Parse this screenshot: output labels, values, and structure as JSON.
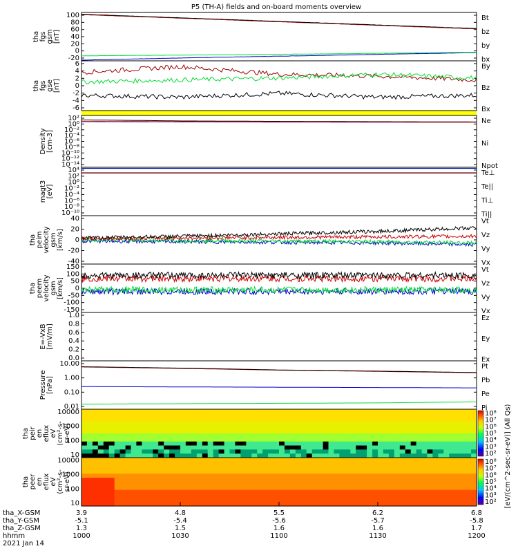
{
  "title": "P5 (TH-A) fields and on-board moments overview",
  "colors": {
    "black": "#000000",
    "red": "#cc0000",
    "green": "#00dd33",
    "blue": "#0000cc",
    "yellow": "#ffff00",
    "darkred": "#990000"
  },
  "panels": [
    {
      "ylabel": [
        "tha",
        "fgs",
        "gsm",
        "[nT]"
      ],
      "ticks": [
        "100",
        "80",
        "60",
        "40",
        "20",
        "0",
        "-20"
      ],
      "legend": [
        {
          "t": "Bt",
          "c": "black"
        },
        {
          "t": "bz",
          "c": "red"
        },
        {
          "t": "by",
          "c": "green"
        },
        {
          "t": "bx",
          "c": "blue"
        }
      ]
    },
    {
      "ylabel": [
        "tha",
        "fgs",
        "gse",
        "[nT]"
      ],
      "ticks": [
        "6",
        "4",
        "2",
        "0",
        "-2",
        "-4",
        "-6"
      ],
      "legend": [
        {
          "t": "By",
          "c": "green"
        },
        {
          "t": "Bz",
          "c": "darkred"
        },
        {
          "t": "Bx",
          "c": "black"
        }
      ]
    },
    {
      "ylabel": [
        "Density",
        "[cm-3]"
      ],
      "ticks": [
        "10²",
        "10⁰",
        "10⁻²",
        "10⁻⁴",
        "10⁻⁶",
        "10⁻⁸",
        "10⁻¹⁰",
        "10⁻¹²",
        "10⁻¹⁴"
      ],
      "legend": [
        {
          "t": "Ne",
          "c": "red"
        },
        {
          "t": "Ni",
          "c": "black"
        },
        {
          "t": "Npot",
          "c": "blue"
        }
      ]
    },
    {
      "ylabel": [
        "magt3",
        "[eV]"
      ],
      "ticks": [
        "10⁴",
        "10²",
        "10⁰",
        "10⁻²",
        "10⁻⁴",
        "10⁻⁶",
        "10⁻⁸",
        "10⁻¹⁰"
      ],
      "legend": [
        {
          "t": "Te⊥",
          "c": "red"
        },
        {
          "t": "Te||",
          "c": "black"
        },
        {
          "t": "Ti⊥",
          "c": "blue"
        },
        {
          "t": "Ti||",
          "c": "green"
        }
      ]
    },
    {
      "ylabel": [
        "tha",
        "peim",
        "velocity",
        "gsm",
        "[km/s]"
      ],
      "ticks": [
        "40",
        "20",
        "0",
        "-20",
        "-40"
      ],
      "legend": [
        {
          "t": "Vt",
          "c": "black"
        },
        {
          "t": "Vz",
          "c": "red"
        },
        {
          "t": "Vy",
          "c": "green"
        },
        {
          "t": "Vx",
          "c": "blue"
        }
      ]
    },
    {
      "ylabel": [
        "tha",
        "peem",
        "velocity",
        "gsm",
        "[km/s]"
      ],
      "ticks": [
        "150",
        "100",
        "50",
        "0",
        "-50",
        "-100",
        "-150"
      ],
      "legend": [
        {
          "t": "Vt",
          "c": "black"
        },
        {
          "t": "Vz",
          "c": "red"
        },
        {
          "t": "Vy",
          "c": "green"
        },
        {
          "t": "Vx",
          "c": "blue"
        }
      ]
    },
    {
      "ylabel": [
        "E=-VxB",
        "[mV/m]"
      ],
      "ticks": [
        "1.0",
        "0.8",
        "0.6",
        "0.4",
        "0.2",
        "0.0"
      ],
      "legend": [
        {
          "t": "Ez",
          "c": "red"
        },
        {
          "t": "Ey",
          "c": "green"
        },
        {
          "t": "Ex",
          "c": "blue"
        }
      ]
    },
    {
      "ylabel": [
        "Pressure",
        "[nPa]"
      ],
      "ticks": [
        "10.00",
        "1.00",
        "0.10",
        "0.01"
      ],
      "legend": [
        {
          "t": "Pt",
          "c": "black"
        },
        {
          "t": "Pb",
          "c": "red"
        },
        {
          "t": "Pe",
          "c": "green"
        },
        {
          "t": "Pi",
          "c": "blue"
        }
      ]
    },
    {
      "ylabel": [
        "tha",
        "peir",
        "en",
        "eflux",
        "eV",
        "(cm²-s-",
        "sr-eV)"
      ],
      "ticks": [
        "10000",
        "1000",
        "100",
        "10"
      ]
    },
    {
      "ylabel": [
        "tha",
        "peer",
        "en",
        "eflux",
        "eV",
        "(cm²-s-",
        "sr-eV)"
      ],
      "ticks": [
        "10000",
        "1000",
        "100",
        "10"
      ]
    }
  ],
  "colorbar": {
    "label": "[eV/(cm^2-sec-sr-eV)] (All Qs)",
    "top_ticks": [
      "10⁸",
      "10⁷",
      "10⁶",
      "10⁵",
      "10⁴",
      "10³",
      "10²"
    ],
    "bottom_ticks": [
      "10⁸",
      "10⁷",
      "10⁶",
      "10⁵",
      "10⁴",
      "10³",
      "10²"
    ]
  },
  "xaxis": {
    "row_labels": [
      "tha_X-GSM",
      "tha_Y-GSM",
      "tha_Z-GSM",
      "hhmm",
      "2021 Jan 14"
    ],
    "columns": [
      {
        "x": "3.9",
        "y": "-5.1",
        "z": "1.3",
        "t": "1000"
      },
      {
        "x": "4.8",
        "y": "-5.4",
        "z": "1.5",
        "t": "1030"
      },
      {
        "x": "5.5",
        "y": "-5.6",
        "z": "1.6",
        "t": "1100"
      },
      {
        "x": "6.2",
        "y": "-5.7",
        "z": "1.6",
        "t": "1130"
      },
      {
        "x": "6.8",
        "y": "-5.8",
        "z": "1.7",
        "t": "1200"
      }
    ]
  },
  "chart_data": [
    {
      "type": "line",
      "title": "P5 (TH-A) fields and on-board moments overview",
      "ylabel": "tha fgs gsm [nT]",
      "ylim": [
        -30,
        105
      ],
      "x": [
        "1000",
        "1030",
        "1100",
        "1130",
        "1200"
      ],
      "series": [
        {
          "name": "Bt",
          "values": [
            100,
            90,
            80,
            70,
            60
          ]
        },
        {
          "name": "bz",
          "values": [
            99,
            89,
            79,
            69,
            59
          ]
        },
        {
          "name": "by",
          "values": [
            -16,
            -14,
            -12,
            -9,
            -6
          ]
        },
        {
          "name": "bx",
          "values": [
            -28,
            -22,
            -17,
            -12,
            -7
          ]
        }
      ]
    },
    {
      "type": "line",
      "ylabel": "tha fgs gse [nT]",
      "ylim": [
        -7,
        6
      ],
      "x": [
        "1000",
        "1030",
        "1100",
        "1130",
        "1200"
      ],
      "series": [
        {
          "name": "By",
          "values": [
            0.5,
            1,
            1.5,
            2.5,
            1.5
          ]
        },
        {
          "name": "Bz",
          "values": [
            3,
            4.5,
            2.5,
            2,
            1
          ]
        },
        {
          "name": "Bx",
          "values": [
            -3,
            -3.5,
            -2.5,
            -3.5,
            -3
          ]
        }
      ]
    },
    {
      "type": "line",
      "ylabel": "Density [cm-3]",
      "ylim": [
        "1e-14",
        "1e2"
      ],
      "x": [
        "1000",
        "1030",
        "1100",
        "1130",
        "1200"
      ],
      "series": [
        {
          "name": "Ne",
          "values": [
            1.5,
            1.2,
            1.0,
            0.9,
            0.8
          ]
        },
        {
          "name": "Ni",
          "values": [
            4,
            2,
            1.5,
            1.2,
            1.0
          ]
        },
        {
          "name": "Npot",
          "values": [
            1.2,
            1.0,
            0.9,
            0.85,
            0.8
          ]
        }
      ]
    },
    {
      "type": "line",
      "ylabel": "magt3 [eV]",
      "ylim": [
        "1e-10",
        "1e4"
      ],
      "x": [
        "1000",
        "1030",
        "1100",
        "1130",
        "1200"
      ],
      "series": [
        {
          "name": "Te⊥",
          "values": [
            200,
            200,
            200,
            200,
            200
          ]
        },
        {
          "name": "Te||",
          "values": [
            250,
            250,
            250,
            250,
            250
          ]
        },
        {
          "name": "Ti⊥",
          "values": [
            5000,
            5000,
            5000,
            5000,
            5000
          ]
        },
        {
          "name": "Ti||",
          "values": [
            4500,
            4500,
            4500,
            4500,
            4500
          ]
        }
      ]
    },
    {
      "type": "line",
      "ylabel": "tha peim velocity gsm [km/s]",
      "ylim": [
        -40,
        40
      ],
      "x": [
        "1000",
        "1030",
        "1100",
        "1130",
        "1200"
      ],
      "series": [
        {
          "name": "Vt",
          "values": [
            3,
            6,
            10,
            14,
            20
          ]
        },
        {
          "name": "Vz",
          "values": [
            2,
            3,
            4,
            5,
            6
          ]
        },
        {
          "name": "Vy",
          "values": [
            0,
            -1,
            -2,
            -3,
            -5
          ]
        },
        {
          "name": "Vx",
          "values": [
            -2,
            -3,
            -4,
            -5,
            -8
          ]
        }
      ]
    },
    {
      "type": "line",
      "ylabel": "tha peem velocity gsm [km/s]",
      "ylim": [
        -150,
        150
      ],
      "x": [
        "1000",
        "1030",
        "1100",
        "1130",
        "1200"
      ],
      "series": [
        {
          "name": "Vt",
          "values": [
            80,
            80,
            80,
            80,
            80
          ]
        },
        {
          "name": "Vz",
          "values": [
            60,
            60,
            60,
            60,
            60
          ]
        },
        {
          "name": "Vy",
          "values": [
            -10,
            -10,
            -10,
            -10,
            -10
          ]
        },
        {
          "name": "Vx",
          "values": [
            -20,
            -20,
            -20,
            -20,
            -20
          ]
        }
      ]
    },
    {
      "type": "line",
      "ylabel": "E=-VxB [mV/m]",
      "ylim": [
        0,
        1
      ],
      "series": []
    },
    {
      "type": "line",
      "ylabel": "Pressure [nPa]",
      "ylim": [
        0.007,
        12
      ],
      "x": [
        "1000",
        "1030",
        "1100",
        "1130",
        "1200"
      ],
      "series": [
        {
          "name": "Pt",
          "values": [
            5,
            4,
            3,
            2.5,
            2
          ]
        },
        {
          "name": "Pb",
          "values": [
            4.8,
            3.8,
            2.9,
            2.4,
            1.9
          ]
        },
        {
          "name": "Pe",
          "values": [
            0.014,
            0.015,
            0.016,
            0.017,
            0.02
          ]
        },
        {
          "name": "Pi",
          "values": [
            0.22,
            0.21,
            0.2,
            0.19,
            0.18
          ]
        }
      ]
    },
    {
      "type": "heatmap",
      "ylabel": "tha peir en eflux eV",
      "ylim": [
        5,
        30000
      ],
      "zlim": [
        "1e2",
        "1e8"
      ]
    },
    {
      "type": "heatmap",
      "ylabel": "tha peer en eflux eV",
      "ylim": [
        5,
        30000
      ],
      "zlim": [
        "1e2",
        "1e8"
      ]
    }
  ]
}
